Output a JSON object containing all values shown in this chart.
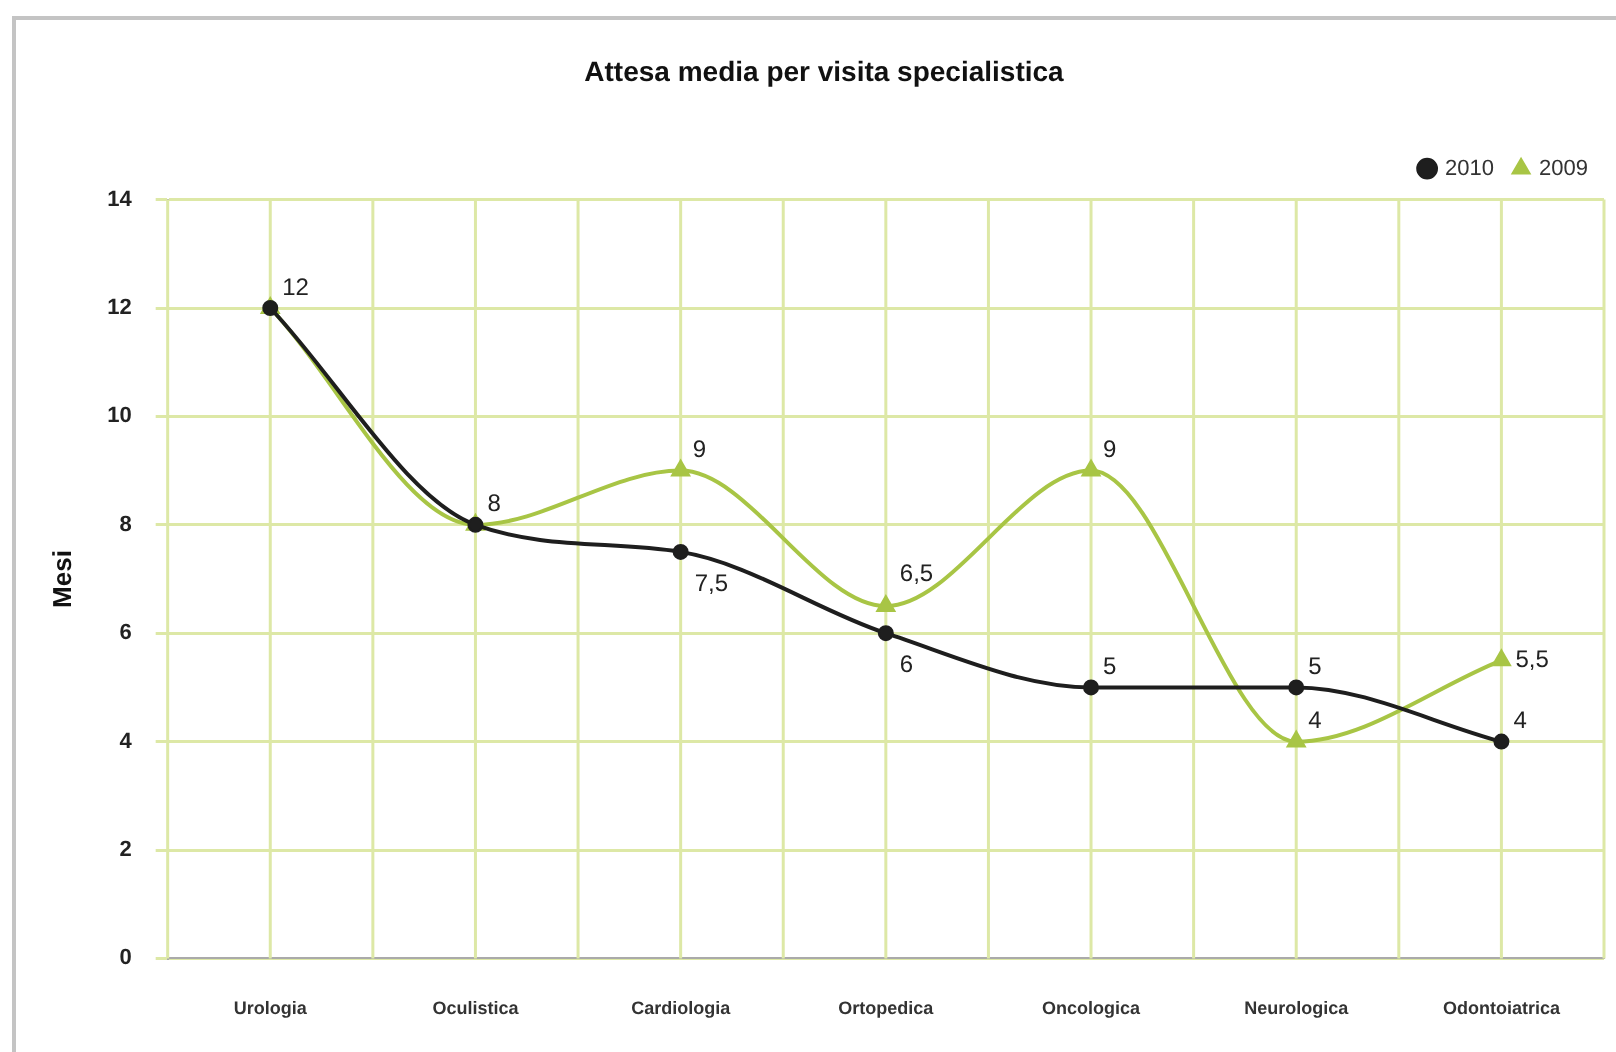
{
  "chart_data": {
    "type": "line",
    "title": "Attesa media per visita specialistica",
    "ylabel": "Mesi",
    "categories": [
      "Urologia",
      "Oculistica",
      "Cardiologia",
      "Ortopedica",
      "Oncologica",
      "Neurologica",
      "Odontoiatrica"
    ],
    "series": [
      {
        "name": "2010",
        "color": "#1e1e1e",
        "marker": "circle",
        "values": [
          12,
          8,
          7.5,
          6,
          5,
          5,
          4
        ],
        "value_labels": [
          "12",
          "8",
          "7,5",
          "6",
          "5",
          "5",
          "4"
        ]
      },
      {
        "name": "2009",
        "color": "#a8c545",
        "marker": "triangle",
        "values": [
          12,
          8,
          9,
          6.5,
          9,
          4,
          5.5
        ],
        "value_labels": [
          null,
          null,
          "9",
          "6,5",
          "9",
          "4",
          "5,5"
        ]
      }
    ],
    "ylim": [
      0,
      14
    ],
    "yticks": [
      0,
      2,
      4,
      6,
      8,
      10,
      12,
      14
    ],
    "grid": true,
    "legend": "top right"
  }
}
